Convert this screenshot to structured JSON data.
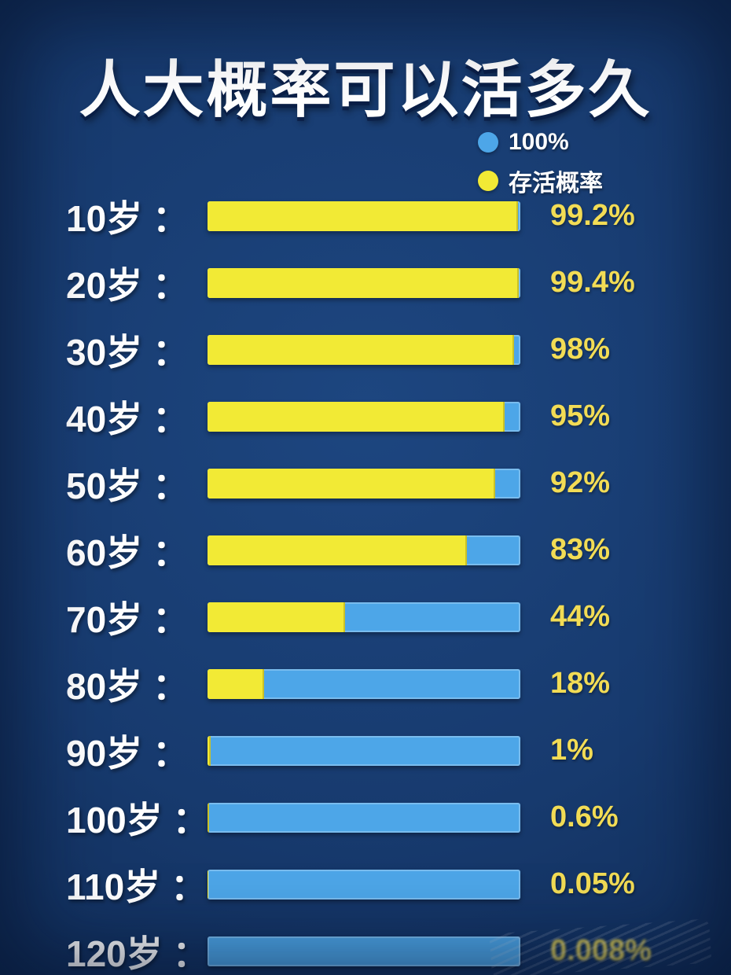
{
  "chart_data": {
    "type": "bar",
    "orientation": "horizontal",
    "title": "人大概率可以活多久",
    "categories": [
      "10岁",
      "20岁",
      "30岁",
      "40岁",
      "50岁",
      "60岁",
      "70岁",
      "80岁",
      "90岁",
      "100岁",
      "110岁",
      "120岁"
    ],
    "values": [
      99.2,
      99.4,
      98,
      95,
      92,
      83,
      44,
      18,
      1,
      0.6,
      0.05,
      0.008
    ],
    "value_labels": [
      "99.2%",
      "99.4%",
      "98%",
      "95%",
      "92%",
      "83%",
      "44%",
      "18%",
      "1%",
      "0.6%",
      "0.05%",
      "0.008%"
    ],
    "label_suffix": " ：",
    "xlim": [
      0,
      100
    ],
    "legend": [
      {
        "label": "100%",
        "color": "#4da6e8"
      },
      {
        "label": "存活概率",
        "color": "#f2ea35"
      }
    ],
    "colors": {
      "background": "#17396d",
      "bar_base": "#4da6e8",
      "bar_fill": "#f2ea35",
      "category_label": "#ffffff",
      "value_label": "#f2dc55"
    },
    "notes": "last value label partially obscured by watermark"
  }
}
